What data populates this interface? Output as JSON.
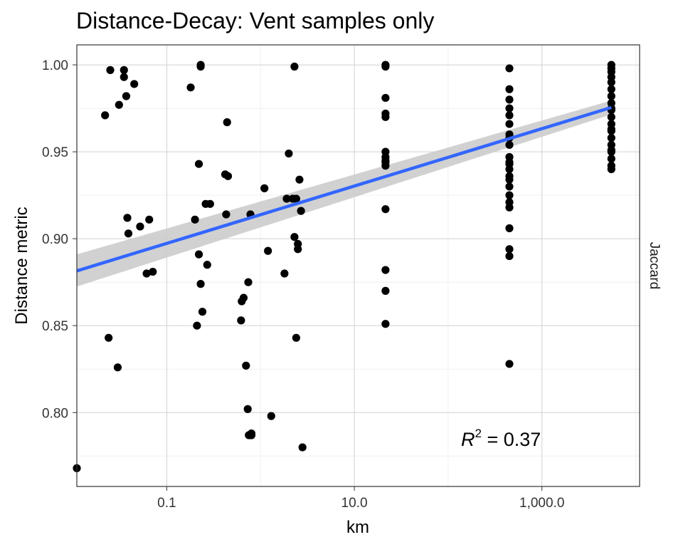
{
  "chart_data": {
    "type": "scatter",
    "title": "Distance-Decay: Vent samples only",
    "xlabel": "km",
    "ylabel": "Distance metric",
    "facet_label": "Jaccard",
    "x_scale": "log10",
    "xlim": [
      0.011,
      11000
    ],
    "ylim": [
      0.7575,
      1.0115
    ],
    "x_ticks": [
      0.1,
      10,
      1000
    ],
    "x_tick_labels": [
      "0.1",
      "10.0",
      "1,000.0"
    ],
    "y_ticks": [
      0.8,
      0.85,
      0.9,
      0.95,
      1.0
    ],
    "y_tick_labels": [
      "0.80",
      "0.85",
      "0.90",
      "0.95",
      "1.00"
    ],
    "grid": true,
    "annotation": {
      "italic": "R",
      "sup": "2",
      "text": " = 0.37"
    },
    "trend": {
      "x": [
        0.011,
        5500
      ],
      "y": [
        0.8815,
        0.9755
      ]
    },
    "ci_band": {
      "x": [
        0.011,
        5500
      ],
      "upper": [
        0.891,
        0.9795
      ],
      "lower": [
        0.8725,
        0.9715
      ]
    },
    "colors": {
      "points": "#000000",
      "trend": "#3366ff",
      "band": "#cccccc",
      "grid_major": "#d0d0d0",
      "grid_minor": "#ececec"
    },
    "series": [
      {
        "x": [
          0.011,
          0.022,
          0.024,
          0.025,
          0.03,
          0.031,
          0.035,
          0.035,
          0.037,
          0.038,
          0.039,
          0.045,
          0.052,
          0.061,
          0.065,
          0.071,
          0.18,
          0.2,
          0.21,
          0.22,
          0.22,
          0.23,
          0.23,
          0.23,
          0.24,
          0.26,
          0.27,
          0.29,
          0.42,
          0.43,
          0.44,
          0.45,
          0.62,
          0.63,
          0.66,
          0.7,
          0.73,
          0.74,
          0.75,
          0.78,
          0.79,
          0.8,
          0.8,
          1.1,
          1.2,
          1.3,
          1.8,
          1.9,
          2.0,
          2.2,
          2.3,
          2.3,
          2.4,
          2.4,
          2.5,
          2.5,
          2.6,
          2.7,
          2.8,
          21.5,
          21.5,
          21.5,
          21.5,
          21.5,
          21.5,
          21.5,
          21.5,
          21.5,
          21.5,
          21.5,
          21.5,
          21.5,
          21.5,
          450,
          450,
          450,
          450,
          450,
          450,
          450,
          450,
          450,
          450,
          450,
          450,
          450,
          450,
          450,
          450,
          450,
          450,
          450,
          450,
          450,
          450,
          450,
          5500,
          5500,
          5500,
          5500,
          5500,
          5500,
          5500,
          5500,
          5500,
          5500,
          5500,
          5500,
          5500,
          5500,
          5500,
          5500,
          5500,
          5500,
          5500,
          5500,
          5500
        ],
        "y": [
          0.768,
          0.971,
          0.843,
          0.997,
          0.826,
          0.977,
          0.997,
          0.993,
          0.982,
          0.912,
          0.903,
          0.989,
          0.907,
          0.88,
          0.911,
          0.881,
          0.987,
          0.911,
          0.85,
          0.891,
          0.943,
          0.999,
          1.0,
          0.874,
          0.858,
          0.92,
          0.885,
          0.92,
          0.937,
          0.914,
          0.967,
          0.936,
          0.853,
          0.864,
          0.866,
          0.827,
          0.802,
          0.875,
          0.787,
          0.914,
          0.787,
          0.788,
          0.787,
          0.929,
          0.893,
          0.798,
          0.88,
          0.923,
          0.949,
          0.923,
          0.901,
          0.999,
          0.923,
          0.843,
          0.897,
          0.894,
          0.934,
          0.916,
          0.78,
          1.0,
          0.999,
          0.981,
          0.972,
          0.97,
          0.95,
          0.947,
          0.944,
          0.917,
          0.882,
          0.87,
          0.851,
          0.945,
          0.942,
          0.998,
          0.986,
          0.98,
          0.975,
          0.971,
          0.966,
          0.96,
          0.958,
          0.954,
          0.947,
          0.943,
          0.94,
          0.934,
          0.93,
          0.925,
          0.921,
          0.918,
          0.906,
          0.894,
          0.89,
          0.828,
          0.936,
          0.944,
          1.0,
          0.998,
          0.996,
          0.993,
          0.99,
          0.986,
          0.982,
          0.978,
          0.974,
          0.97,
          0.966,
          0.962,
          0.958,
          0.954,
          0.95,
          0.946,
          0.942,
          0.94,
          0.951,
          0.963,
          0.975
        ]
      }
    ]
  }
}
